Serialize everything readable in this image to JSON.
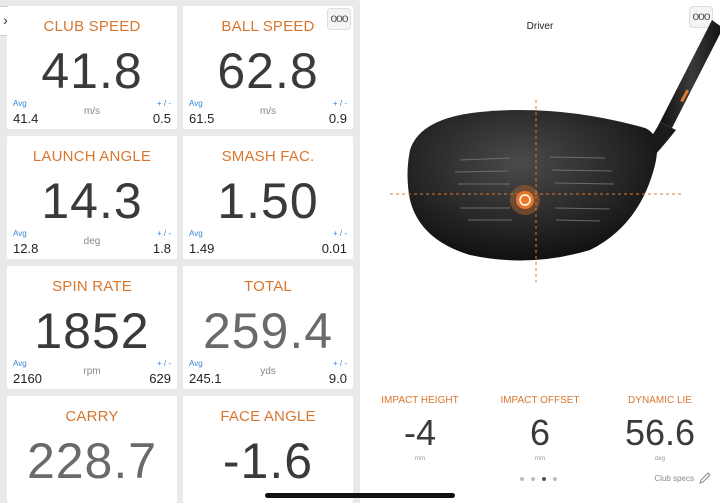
{
  "tiles": [
    {
      "label": "CLUB SPEED",
      "value": "41.8",
      "avg_label": "Avg",
      "avg": "41.4",
      "unit": "m/s",
      "pm_label": "+ / -",
      "pm": "0.5"
    },
    {
      "label": "BALL SPEED",
      "value": "62.8",
      "avg_label": "Avg",
      "avg": "61.5",
      "unit": "m/s",
      "pm_label": "+ / -",
      "pm": "0.9"
    },
    {
      "label": "LAUNCH ANGLE",
      "value": "14.3",
      "avg_label": "Avg",
      "avg": "12.8",
      "unit": "deg",
      "pm_label": "+ / -",
      "pm": "1.8"
    },
    {
      "label": "SMASH FAC.",
      "value": "1.50",
      "avg_label": "Avg",
      "avg": "1.49",
      "unit": "",
      "pm_label": "+ / -",
      "pm": "0.01"
    },
    {
      "label": "SPIN RATE",
      "value": "1852",
      "avg_label": "Avg",
      "avg": "2160",
      "unit": "rpm",
      "pm_label": "+ / -",
      "pm": "629"
    },
    {
      "label": "TOTAL",
      "value": "259.4",
      "avg_label": "Avg",
      "avg": "245.1",
      "unit": "yds",
      "pm_label": "+ / -",
      "pm": "9.0"
    },
    {
      "label": "CARRY",
      "value": "228.7"
    },
    {
      "label": "FACE ANGLE",
      "value": "-1.6"
    }
  ],
  "club": {
    "title": "Driver"
  },
  "impact": [
    {
      "label": "IMPACT HEIGHT",
      "value": "-4",
      "unit": "mm"
    },
    {
      "label": "IMPACT OFFSET",
      "value": "6",
      "unit": "mm"
    },
    {
      "label": "DYNAMIC LIE",
      "value": "56.6",
      "unit": "deg"
    }
  ],
  "footer": {
    "club_specs": "Club specs",
    "page_count": 4,
    "active_page": 2
  },
  "buttons": {
    "menu_glyph": "ooo",
    "back_glyph": "›"
  },
  "colors": {
    "accent": "#d9762e",
    "avg_label": "#3a84d6"
  }
}
